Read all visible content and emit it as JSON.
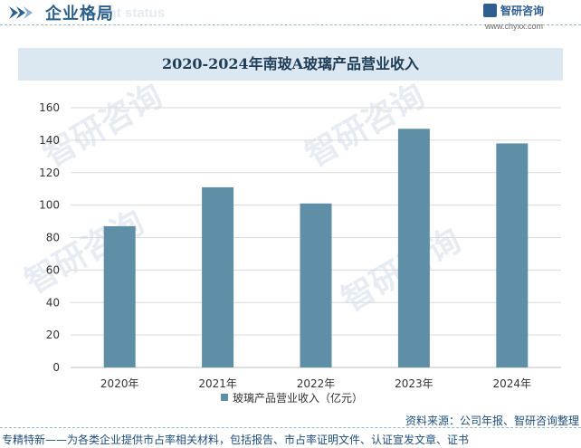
{
  "header": {
    "title": "企业格局",
    "subtitle_en": "ment status",
    "brand_name": "智研咨询",
    "brand_url": "www.chyxx.com"
  },
  "watermark_text": "智研咨询",
  "chart_data": {
    "type": "bar",
    "title": "2020-2024年南玻A玻璃产品营业收入",
    "categories": [
      "2020年",
      "2021年",
      "2022年",
      "2023年",
      "2024年"
    ],
    "series": [
      {
        "name": "玻璃产品营业收入（亿元）",
        "values": [
          87,
          111,
          101,
          147,
          138
        ]
      }
    ],
    "ylim": [
      0,
      160
    ],
    "yticks": [
      0,
      20,
      40,
      60,
      80,
      100,
      120,
      140,
      160
    ],
    "grid": true,
    "legend": "bottom",
    "color": "#5e8fa6"
  },
  "source": "资料来源：公司年报、智研咨询整理",
  "footer": "专精特新——为各类企业提供市占率相关材料，包括报告、市占率证明文件、认证宣发文章、证书"
}
